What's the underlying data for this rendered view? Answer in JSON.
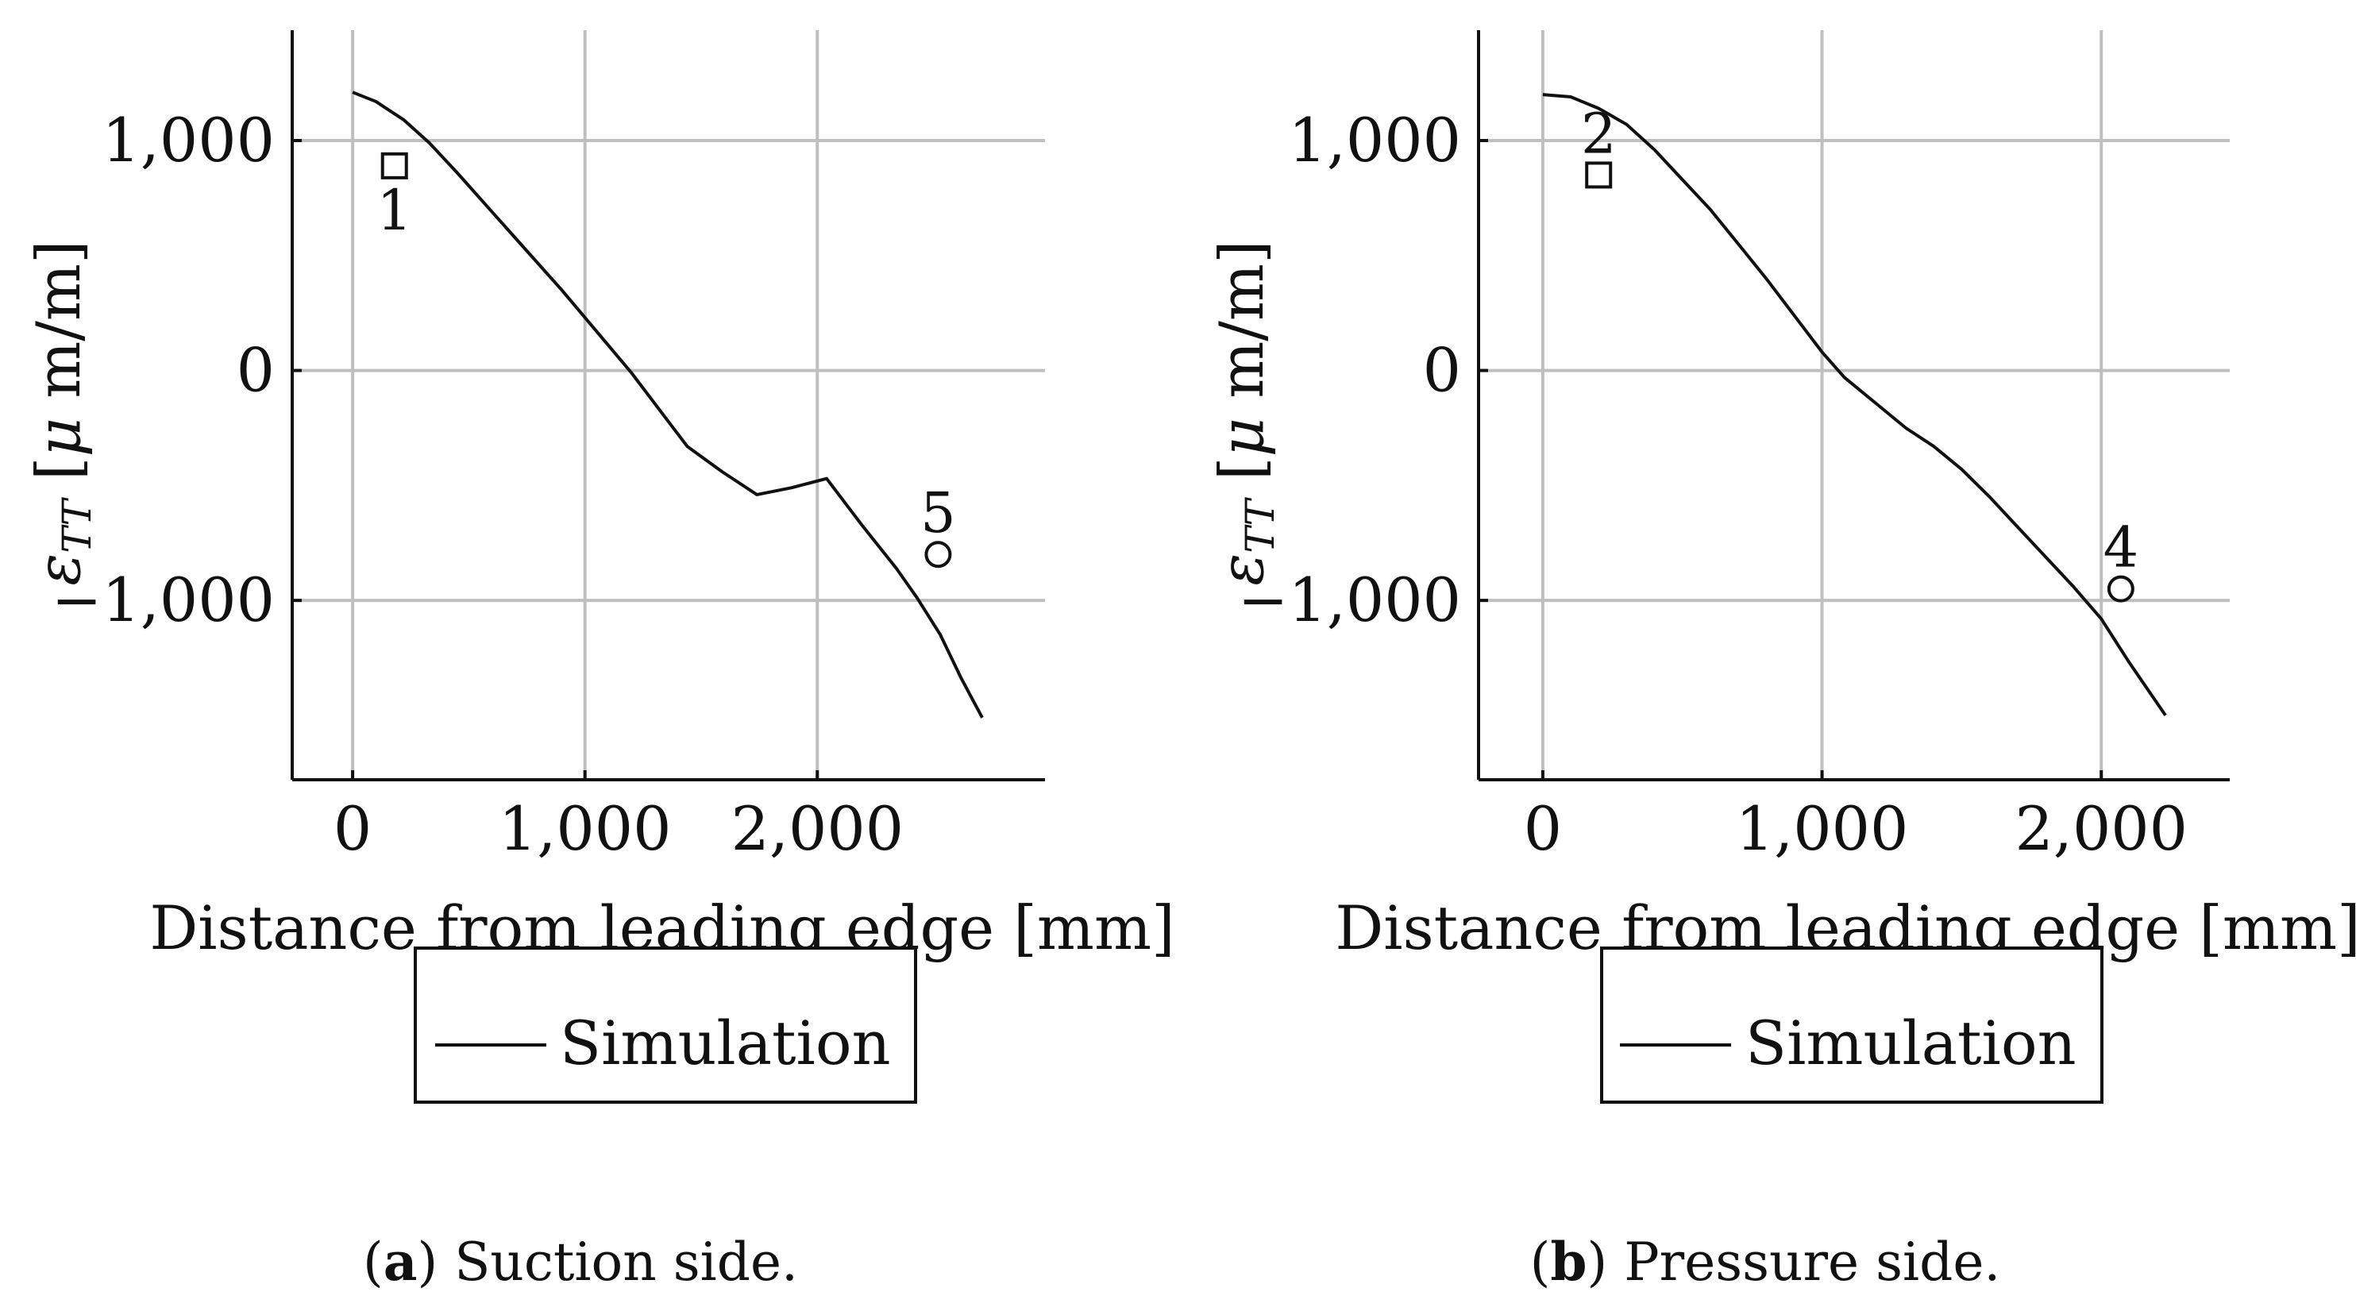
{
  "chart_data": [
    {
      "type": "line",
      "title": "",
      "xlabel": "Distance from leading edge [mm]",
      "ylabel": "ε_TT [μ m/m]",
      "xlim": [
        -260,
        2980
      ],
      "ylim": [
        -1780,
        1480
      ],
      "grid": true,
      "legend_position": "below",
      "xticks": [
        0,
        1000,
        2000
      ],
      "xtick_labels": [
        "0",
        "1,000",
        "2,000"
      ],
      "yticks": [
        1000,
        0,
        -1000
      ],
      "ytick_labels": [
        "1,000",
        "0",
        "−1,000"
      ],
      "series": [
        {
          "name": "Simulation",
          "x": [
            0,
            100,
            220,
            330,
            450,
            600,
            750,
            900,
            1050,
            1200,
            1320,
            1440,
            1590,
            1740,
            1890,
            2040,
            2190,
            2340,
            2430,
            2530,
            2620,
            2710
          ],
          "y": [
            1210,
            1170,
            1090,
            990,
            860,
            690,
            520,
            350,
            170,
            -10,
            -170,
            -330,
            -440,
            -540,
            -510,
            -470,
            -670,
            -860,
            -990,
            -1150,
            -1340,
            -1510
          ]
        }
      ],
      "points": [
        {
          "label": "1",
          "marker": "square",
          "x": 180,
          "y": 890,
          "label_position": "below"
        },
        {
          "label": "5",
          "marker": "circle",
          "x": 2520,
          "y": -800,
          "label_position": "above"
        }
      ],
      "caption_letter": "a",
      "caption_text": " Suction side."
    },
    {
      "type": "line",
      "title": "",
      "xlabel": "Distance from leading edge [mm]",
      "ylabel": "ε_TT [μ m/m]",
      "xlim": [
        -230,
        2460
      ],
      "ylim": [
        -1780,
        1480
      ],
      "grid": true,
      "legend_position": "below",
      "xticks": [
        0,
        1000,
        2000
      ],
      "xtick_labels": [
        "0",
        "1,000",
        "2,000"
      ],
      "yticks": [
        1000,
        0,
        -1000
      ],
      "ytick_labels": [
        "1,000",
        "0",
        "−1,000"
      ],
      "series": [
        {
          "name": "Simulation",
          "x": [
            0,
            100,
            200,
            300,
            400,
            500,
            600,
            700,
            800,
            900,
            1000,
            1080,
            1200,
            1300,
            1400,
            1500,
            1600,
            1700,
            1800,
            1900,
            2000,
            2100,
            2230
          ],
          "y": [
            1200,
            1190,
            1140,
            1070,
            960,
            830,
            700,
            550,
            400,
            240,
            80,
            -30,
            -150,
            -250,
            -330,
            -430,
            -550,
            -680,
            -810,
            -940,
            -1080,
            -1270,
            -1500
          ]
        }
      ],
      "points": [
        {
          "label": "2",
          "marker": "square",
          "x": 200,
          "y": 850,
          "label_position": "above"
        },
        {
          "label": "4",
          "marker": "circle",
          "x": 2070,
          "y": -950,
          "label_position": "above"
        }
      ],
      "caption_letter": "b",
      "caption_text": " Pressure side."
    }
  ]
}
